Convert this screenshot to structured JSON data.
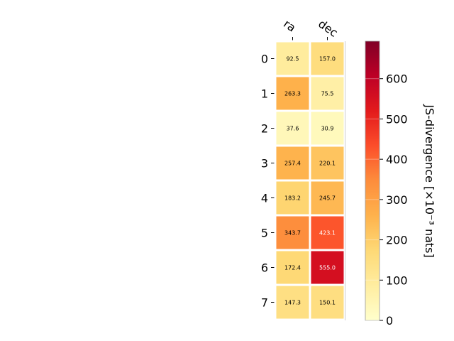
{
  "chart_data": {
    "type": "heatmap",
    "columns": [
      "ra",
      "dec"
    ],
    "rows": [
      "0",
      "1",
      "2",
      "3",
      "4",
      "5",
      "6",
      "7"
    ],
    "values": [
      [
        92.5,
        157.0
      ],
      [
        263.3,
        75.5
      ],
      [
        37.6,
        30.9
      ],
      [
        257.4,
        220.1
      ],
      [
        183.2,
        245.7
      ],
      [
        343.7,
        423.1
      ],
      [
        172.4,
        555.0
      ],
      [
        147.3,
        150.1
      ]
    ],
    "value_labels": [
      [
        "92.5",
        "157.0"
      ],
      [
        "263.3",
        "75.5"
      ],
      [
        "37.6",
        "30.9"
      ],
      [
        "257.4",
        "220.1"
      ],
      [
        "183.2",
        "245.7"
      ],
      [
        "343.7",
        "423.1"
      ],
      [
        "172.4",
        "555.0"
      ],
      [
        "147.3",
        "150.1"
      ]
    ],
    "colorbar": {
      "label": "JS-divergence [×10⁻³ nats]",
      "range": [
        0,
        693
      ],
      "ticks": [
        0,
        100,
        200,
        300,
        400,
        500,
        600
      ],
      "colormap": "YlOrRd"
    },
    "grid": false
  }
}
